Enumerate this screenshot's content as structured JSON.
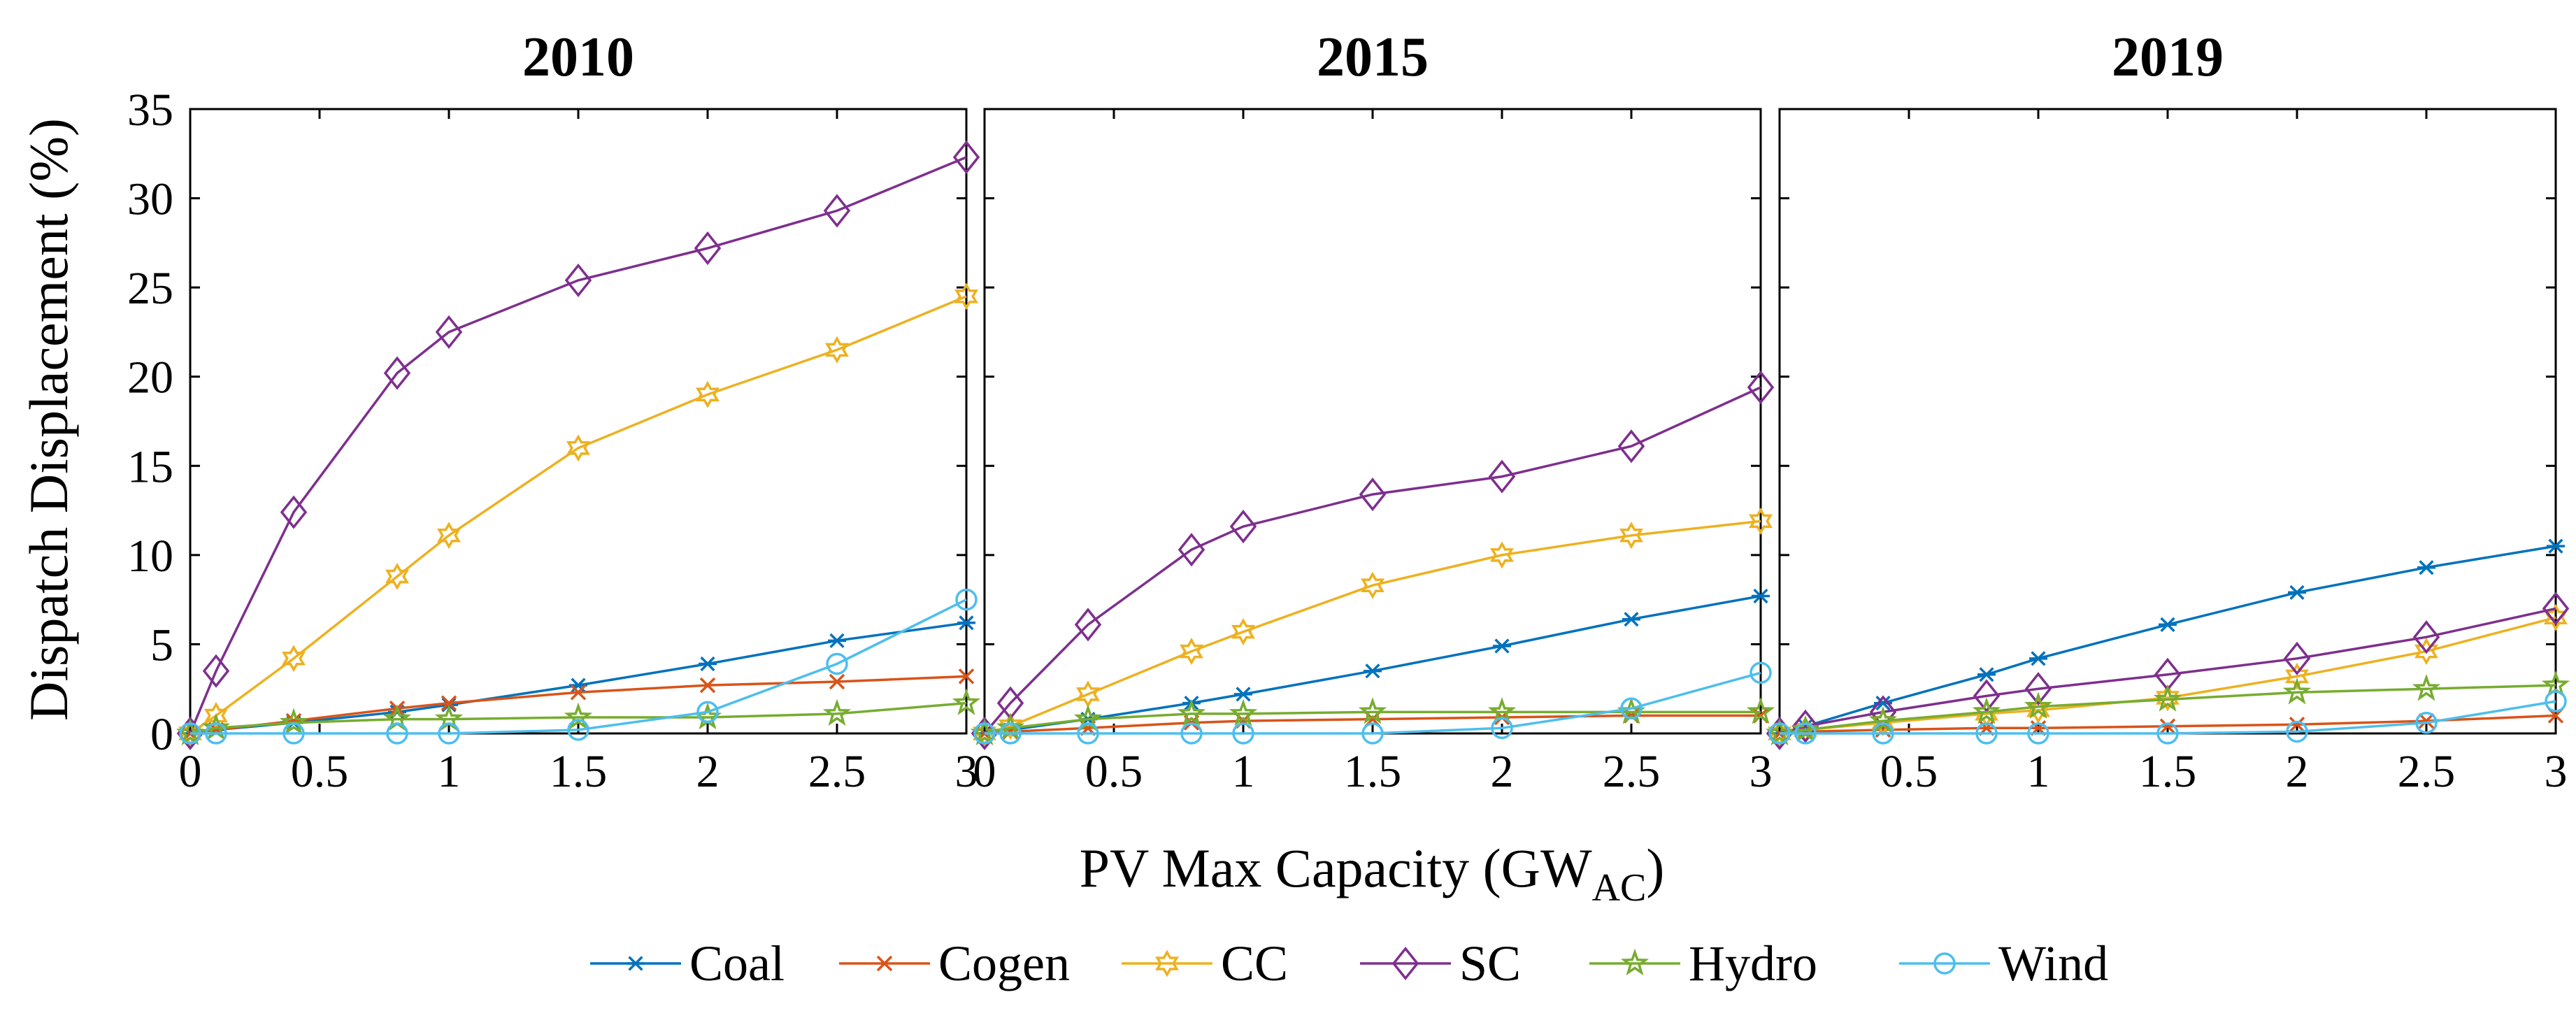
{
  "figure": {
    "ylabel": "Dispatch Displacement (%)",
    "xlabel_main": "PV Max Capacity (GW",
    "xlabel_sub": "AC",
    "xlabel_close": ")"
  },
  "legend": {
    "placement": "bottom-center",
    "entries": [
      {
        "name": "Coal",
        "color": "#0072BD",
        "marker": "asterisk"
      },
      {
        "name": "Cogen",
        "color": "#D95319",
        "marker": "cross"
      },
      {
        "name": "CC",
        "color": "#EDB120",
        "marker": "hexagram"
      },
      {
        "name": "SC",
        "color": "#7E2F8E",
        "marker": "diamond"
      },
      {
        "name": "Hydro",
        "color": "#77AC30",
        "marker": "pentagram"
      },
      {
        "name": "Wind",
        "color": "#4DBEEE",
        "marker": "circle"
      }
    ]
  },
  "chart_data": [
    {
      "type": "line",
      "title": "2010",
      "xlabel": "PV Max Capacity (GW_AC)",
      "ylabel": "Dispatch Displacement (%)",
      "xlim": [
        0,
        3
      ],
      "ylim": [
        0,
        35
      ],
      "xticks": [
        0,
        0.5,
        1,
        1.5,
        2,
        2.5,
        3
      ],
      "xtick_labels": [
        "0",
        "0.5",
        "1",
        "1.5",
        "2",
        "2.5",
        "3"
      ],
      "yticks": [
        0,
        5,
        10,
        15,
        20,
        25,
        30,
        35
      ],
      "ytick_labels": [
        "0",
        "5",
        "10",
        "15",
        "20",
        "25",
        "30",
        "35"
      ],
      "x": [
        0,
        0.1,
        0.4,
        0.8,
        1,
        1.5,
        2,
        2.5,
        3
      ],
      "series": [
        {
          "name": "Coal",
          "values": [
            0,
            0.2,
            0.6,
            1.2,
            1.6,
            2.7,
            3.9,
            5.2,
            6.2
          ]
        },
        {
          "name": "Cogen",
          "values": [
            0,
            0.2,
            0.7,
            1.4,
            1.7,
            2.3,
            2.7,
            2.9,
            3.2
          ]
        },
        {
          "name": "CC",
          "values": [
            0,
            1.0,
            4.2,
            8.8,
            11.1,
            16.0,
            19.0,
            21.5,
            24.5
          ]
        },
        {
          "name": "SC",
          "values": [
            0,
            3.5,
            12.4,
            20.2,
            22.5,
            25.4,
            27.2,
            29.3,
            32.3
          ]
        },
        {
          "name": "Hydro",
          "values": [
            0,
            0.3,
            0.6,
            0.8,
            0.8,
            0.9,
            0.9,
            1.1,
            1.7
          ]
        },
        {
          "name": "Wind",
          "values": [
            0,
            0,
            0,
            0,
            0,
            0.2,
            1.2,
            3.9,
            7.5
          ]
        }
      ]
    },
    {
      "type": "line",
      "title": "2015",
      "xlabel": "PV Max Capacity (GW_AC)",
      "ylabel": "Dispatch Displacement (%)",
      "xlim": [
        0,
        3
      ],
      "ylim": [
        0,
        35
      ],
      "xticks": [
        0,
        0.5,
        1,
        1.5,
        2,
        2.5,
        3
      ],
      "xtick_labels": [
        "0",
        "0.5",
        "1",
        "1.5",
        "2",
        "2.5",
        "3"
      ],
      "yticks": [
        0,
        5,
        10,
        15,
        20,
        25,
        30,
        35
      ],
      "x": [
        0,
        0.1,
        0.4,
        0.8,
        1,
        1.5,
        2,
        2.5,
        3
      ],
      "series": [
        {
          "name": "Coal",
          "values": [
            0,
            0.2,
            0.8,
            1.7,
            2.2,
            3.5,
            4.9,
            6.4,
            7.7
          ]
        },
        {
          "name": "Cogen",
          "values": [
            0,
            0.1,
            0.3,
            0.6,
            0.7,
            0.8,
            0.9,
            1.0,
            1.0
          ]
        },
        {
          "name": "CC",
          "values": [
            0,
            0.4,
            2.2,
            4.6,
            5.7,
            8.3,
            10.0,
            11.1,
            11.9
          ]
        },
        {
          "name": "SC",
          "values": [
            0,
            1.7,
            6.1,
            10.3,
            11.6,
            13.4,
            14.4,
            16.1,
            19.4
          ]
        },
        {
          "name": "Hydro",
          "values": [
            0,
            0.3,
            0.8,
            1.1,
            1.1,
            1.2,
            1.2,
            1.2,
            1.2
          ]
        },
        {
          "name": "Wind",
          "values": [
            0,
            0,
            0,
            0,
            0,
            0,
            0.3,
            1.4,
            3.4
          ]
        }
      ]
    },
    {
      "type": "line",
      "title": "2019",
      "xlabel": "PV Max Capacity (GW_AC)",
      "ylabel": "Dispatch Displacement (%)",
      "xlim": [
        0,
        3
      ],
      "ylim": [
        0,
        35
      ],
      "xticks": [
        0,
        0.5,
        1,
        1.5,
        2,
        2.5,
        3
      ],
      "xtick_labels": [
        "",
        "0.5",
        "1",
        "1.5",
        "2",
        "2.5",
        "3"
      ],
      "yticks": [
        0,
        5,
        10,
        15,
        20,
        25,
        30,
        35
      ],
      "x": [
        0,
        0.1,
        0.4,
        0.8,
        1,
        1.5,
        2,
        2.5,
        3
      ],
      "series": [
        {
          "name": "Coal",
          "values": [
            0,
            0.4,
            1.7,
            3.3,
            4.2,
            6.1,
            7.9,
            9.3,
            10.5
          ]
        },
        {
          "name": "Cogen",
          "values": [
            0,
            0.1,
            0.2,
            0.3,
            0.3,
            0.4,
            0.5,
            0.7,
            1.0
          ]
        },
        {
          "name": "CC",
          "values": [
            0,
            0.2,
            0.6,
            1.1,
            1.3,
            2.0,
            3.2,
            4.6,
            6.5
          ]
        },
        {
          "name": "SC",
          "values": [
            0,
            0.4,
            1.2,
            2.1,
            2.5,
            3.3,
            4.2,
            5.4,
            7.0
          ]
        },
        {
          "name": "Hydro",
          "values": [
            0,
            0.2,
            0.7,
            1.2,
            1.5,
            1.9,
            2.3,
            2.5,
            2.7
          ]
        },
        {
          "name": "Wind",
          "values": [
            0,
            0,
            0,
            0,
            0,
            0,
            0.1,
            0.6,
            1.8
          ]
        }
      ]
    }
  ]
}
